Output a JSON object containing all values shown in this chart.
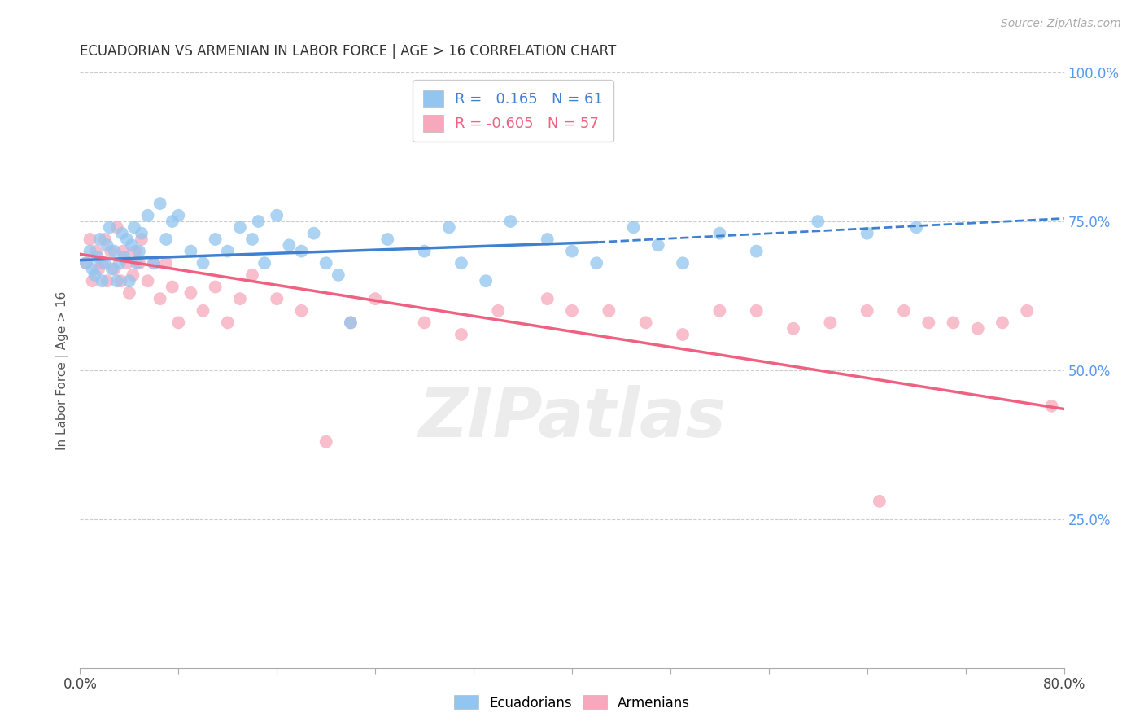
{
  "title": "ECUADORIAN VS ARMENIAN IN LABOR FORCE | AGE > 16 CORRELATION CHART",
  "source": "Source: ZipAtlas.com",
  "ylabel": "In Labor Force | Age > 16",
  "x_min": 0.0,
  "x_max": 0.8,
  "y_min": 0.0,
  "y_max": 1.0,
  "y_ticks_right": [
    0.25,
    0.5,
    0.75,
    1.0
  ],
  "y_tick_labels_right": [
    "25.0%",
    "50.0%",
    "75.0%",
    "100.0%"
  ],
  "blue_R": 0.165,
  "blue_N": 61,
  "pink_R": -0.605,
  "pink_N": 57,
  "blue_color": "#92C5F0",
  "pink_color": "#F7A8BC",
  "blue_line_color": "#4080D0",
  "pink_line_color": "#F06080",
  "grid_color": "#CCCCCC",
  "title_color": "#333333",
  "right_tick_color": "#5599EE",
  "legend_label_blue": "Ecuadorians",
  "legend_label_pink": "Armenians",
  "blue_scatter_x": [
    0.005,
    0.008,
    0.01,
    0.012,
    0.014,
    0.016,
    0.018,
    0.02,
    0.022,
    0.024,
    0.026,
    0.028,
    0.03,
    0.032,
    0.034,
    0.036,
    0.038,
    0.04,
    0.042,
    0.044,
    0.046,
    0.048,
    0.05,
    0.055,
    0.06,
    0.065,
    0.07,
    0.075,
    0.08,
    0.09,
    0.1,
    0.11,
    0.12,
    0.13,
    0.14,
    0.145,
    0.15,
    0.16,
    0.17,
    0.18,
    0.19,
    0.2,
    0.21,
    0.22,
    0.25,
    0.28,
    0.3,
    0.31,
    0.33,
    0.35,
    0.38,
    0.4,
    0.42,
    0.45,
    0.47,
    0.49,
    0.52,
    0.55,
    0.6,
    0.64,
    0.68
  ],
  "blue_scatter_y": [
    0.68,
    0.7,
    0.67,
    0.66,
    0.69,
    0.72,
    0.65,
    0.68,
    0.71,
    0.74,
    0.67,
    0.7,
    0.65,
    0.68,
    0.73,
    0.69,
    0.72,
    0.65,
    0.71,
    0.74,
    0.68,
    0.7,
    0.73,
    0.76,
    0.68,
    0.78,
    0.72,
    0.75,
    0.76,
    0.7,
    0.68,
    0.72,
    0.7,
    0.74,
    0.72,
    0.75,
    0.68,
    0.76,
    0.71,
    0.7,
    0.73,
    0.68,
    0.66,
    0.58,
    0.72,
    0.7,
    0.74,
    0.68,
    0.65,
    0.75,
    0.72,
    0.7,
    0.68,
    0.74,
    0.71,
    0.68,
    0.73,
    0.7,
    0.75,
    0.73,
    0.74
  ],
  "pink_scatter_x": [
    0.005,
    0.008,
    0.01,
    0.013,
    0.015,
    0.018,
    0.02,
    0.022,
    0.025,
    0.028,
    0.03,
    0.033,
    0.035,
    0.038,
    0.04,
    0.043,
    0.045,
    0.048,
    0.05,
    0.055,
    0.06,
    0.065,
    0.07,
    0.075,
    0.08,
    0.09,
    0.1,
    0.11,
    0.12,
    0.13,
    0.14,
    0.16,
    0.18,
    0.2,
    0.22,
    0.24,
    0.28,
    0.31,
    0.34,
    0.38,
    0.4,
    0.43,
    0.46,
    0.49,
    0.52,
    0.55,
    0.58,
    0.61,
    0.64,
    0.65,
    0.67,
    0.69,
    0.71,
    0.73,
    0.75,
    0.77,
    0.79
  ],
  "pink_scatter_y": [
    0.68,
    0.72,
    0.65,
    0.7,
    0.67,
    0.68,
    0.72,
    0.65,
    0.7,
    0.67,
    0.74,
    0.65,
    0.7,
    0.68,
    0.63,
    0.66,
    0.7,
    0.68,
    0.72,
    0.65,
    0.68,
    0.62,
    0.68,
    0.64,
    0.58,
    0.63,
    0.6,
    0.64,
    0.58,
    0.62,
    0.66,
    0.62,
    0.6,
    0.38,
    0.58,
    0.62,
    0.58,
    0.56,
    0.6,
    0.62,
    0.6,
    0.6,
    0.58,
    0.56,
    0.6,
    0.6,
    0.57,
    0.58,
    0.6,
    0.28,
    0.6,
    0.58,
    0.58,
    0.57,
    0.58,
    0.6,
    0.44
  ],
  "blue_line_x0": 0.0,
  "blue_line_x_solid_end": 0.42,
  "blue_line_x1": 0.8,
  "blue_line_y0": 0.685,
  "blue_line_y_solid_end": 0.715,
  "blue_line_y1": 0.755,
  "pink_line_x0": 0.0,
  "pink_line_x1": 0.8,
  "pink_line_y0": 0.695,
  "pink_line_y1": 0.435,
  "figwidth": 14.06,
  "figheight": 8.92
}
